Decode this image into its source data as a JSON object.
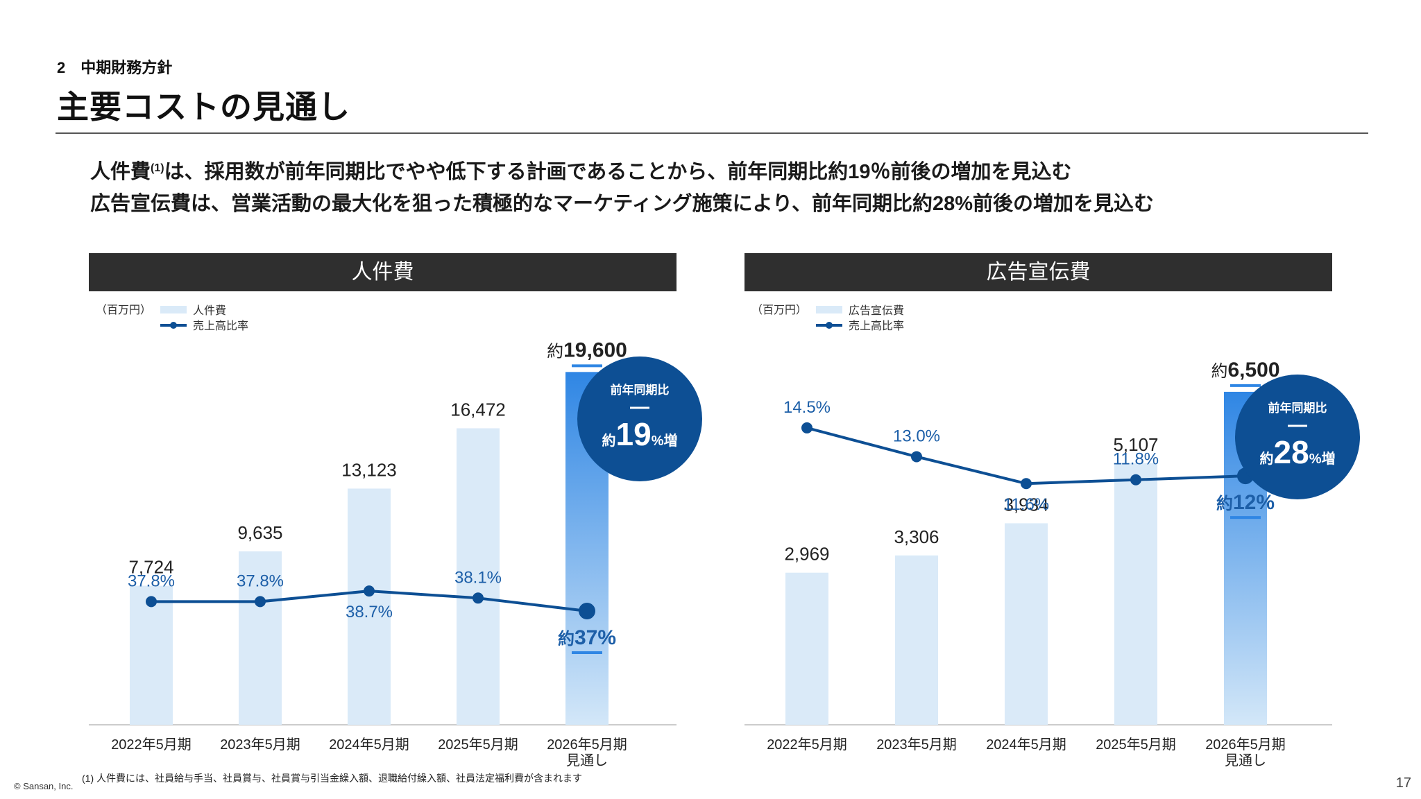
{
  "header": {
    "section": "2　中期財務方針",
    "title": "主要コストの見通し"
  },
  "lead": {
    "line1_a": "人件費",
    "line1_sup": "(1)",
    "line1_b": "は、採用数が前年同期比でやや低下する計画であることから、前年同期比約19％前後の増加を見込む",
    "line2": "広告宣伝費は、営業活動の最大化を狙った積極的なマーケティング施策により、前年同期比約28%前後の増加を見込む"
  },
  "chart_data": [
    {
      "type": "bar",
      "panel_title": "人件費",
      "unit": "（百万円）",
      "legend": {
        "bar": "人件費",
        "line": "売上高比率"
      },
      "categories": [
        "2022年5月期",
        "2023年5月期",
        "2024年5月期",
        "2025年5月期",
        "2026年5月期\n見通し"
      ],
      "bar_values": [
        7724,
        9635,
        13123,
        16472,
        19600
      ],
      "bar_labels": [
        "7,724",
        "9,635",
        "13,123",
        "16,472"
      ],
      "forecast_bar_label_prefix": "約",
      "forecast_bar_label_value": "19,600",
      "line_values": [
        37.8,
        37.8,
        38.7,
        38.1,
        37
      ],
      "line_labels": [
        "37.8%",
        "37.8%",
        "38.7%",
        "38.1%"
      ],
      "forecast_line_label_prefix": "約",
      "forecast_line_label_value": "37%",
      "ylim": [
        0,
        21000
      ],
      "line_ylim": [
        30,
        45
      ],
      "badge": {
        "top": "前年同期比",
        "prefix": "約",
        "value": "19",
        "suffix": "%増"
      },
      "colors": {
        "bar": "#daeaf8",
        "forecast_top": "#2f86e4",
        "forecast_bottom": "#c7e0f6",
        "line": "#0d4f94",
        "badge": "#0d4f94"
      }
    },
    {
      "type": "bar",
      "panel_title": "広告宣伝費",
      "unit": "（百万円）",
      "legend": {
        "bar": "広告宣伝費",
        "line": "売上高比率"
      },
      "categories": [
        "2022年5月期",
        "2023年5月期",
        "2024年5月期",
        "2025年5月期",
        "2026年5月期\n見通し"
      ],
      "bar_values": [
        2969,
        3306,
        3934,
        5107,
        6500
      ],
      "bar_labels": [
        "2,969",
        "3,306",
        "3,934",
        "5,107"
      ],
      "forecast_bar_label_prefix": "約",
      "forecast_bar_label_value": "6,500",
      "line_values": [
        14.5,
        13.0,
        11.6,
        11.8,
        12
      ],
      "line_labels": [
        "14.5%",
        "13.0%",
        "11.6%",
        "11.8%"
      ],
      "forecast_line_label_prefix": "約",
      "forecast_line_label_value": "12%",
      "ylim": [
        0,
        7000
      ],
      "line_ylim": [
        5,
        18
      ],
      "badge": {
        "top": "前年同期比",
        "prefix": "約",
        "value": "28",
        "suffix": "%増"
      },
      "colors": {
        "bar": "#daeaf8",
        "forecast_top": "#2f86e4",
        "forecast_bottom": "#c7e0f6",
        "line": "#0d4f94",
        "badge": "#0d4f94"
      }
    }
  ],
  "footer": {
    "footnote": "(1) 人件費には、社員給与手当、社員賞与、社員賞与引当金繰入額、退職給付繰入額、社員法定福利費が含まれます",
    "copyright": "© Sansan, Inc.",
    "page": "17"
  }
}
